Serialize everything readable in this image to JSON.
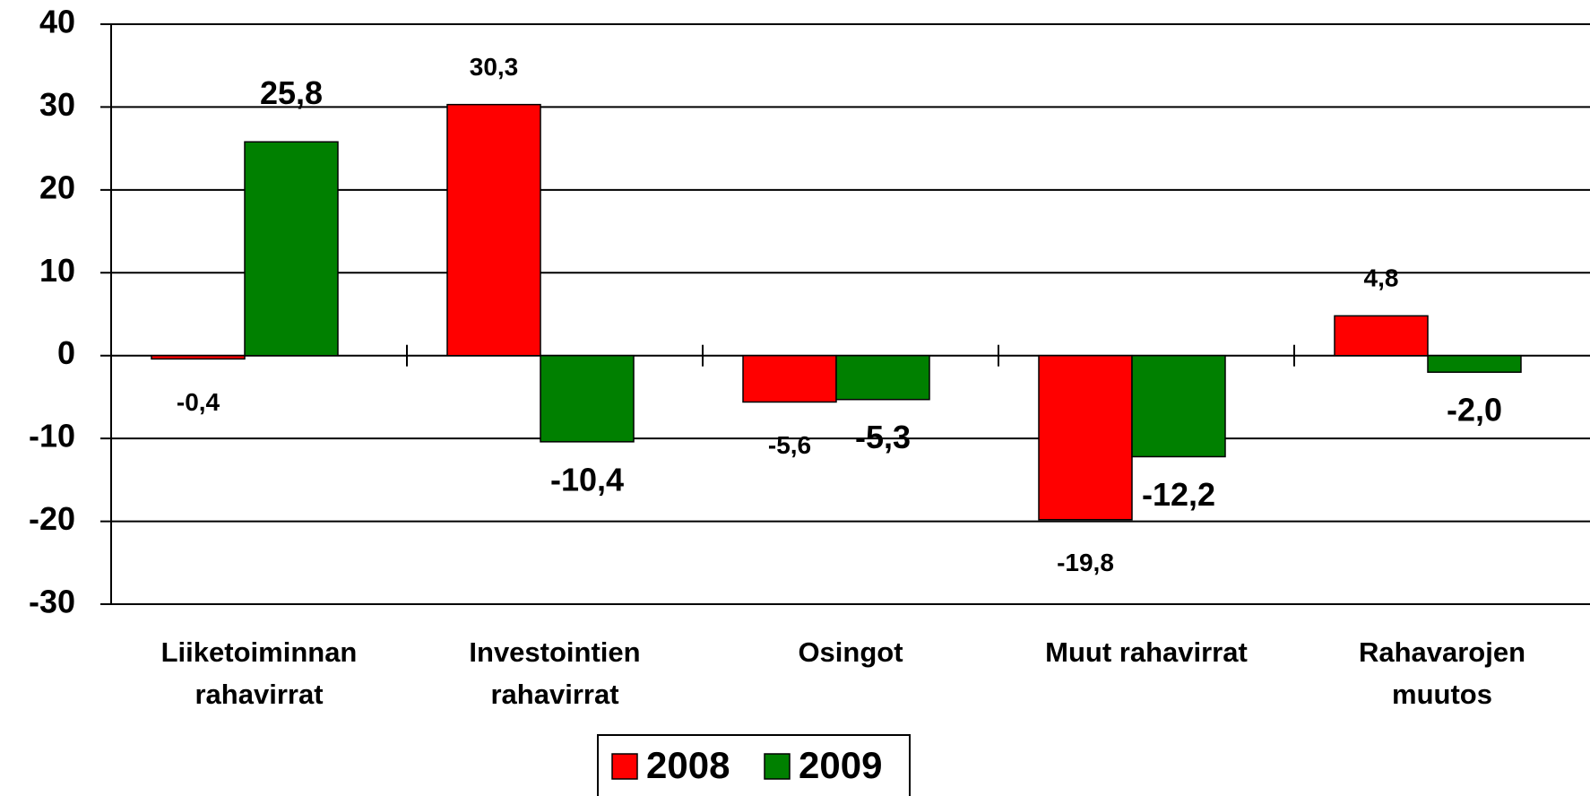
{
  "chart_data": {
    "type": "bar",
    "categories": [
      "Liiketoiminnan rahavirrat",
      "Investointien rahavirrat",
      "Osingot",
      "Muut rahavirrat",
      "Rahavarojen muutos"
    ],
    "series": [
      {
        "name": "2008",
        "color": "#ff0000",
        "values": [
          -0.4,
          30.3,
          -5.6,
          -19.8,
          4.8
        ],
        "value_labels": [
          "-0,4",
          "30,3",
          "-5,6",
          "-19,8",
          "4,8"
        ]
      },
      {
        "name": "2009",
        "color": "#008000",
        "values": [
          25.8,
          -10.4,
          -5.3,
          -12.2,
          -2.0
        ],
        "value_labels": [
          "25,8",
          "-10,4",
          "-5,3",
          "-12,2",
          "-2,0"
        ]
      }
    ],
    "ylim": [
      -30,
      40
    ],
    "yticks": [
      -30,
      -20,
      -10,
      0,
      10,
      20,
      30,
      40
    ],
    "grid": true,
    "legend": "bottom"
  }
}
